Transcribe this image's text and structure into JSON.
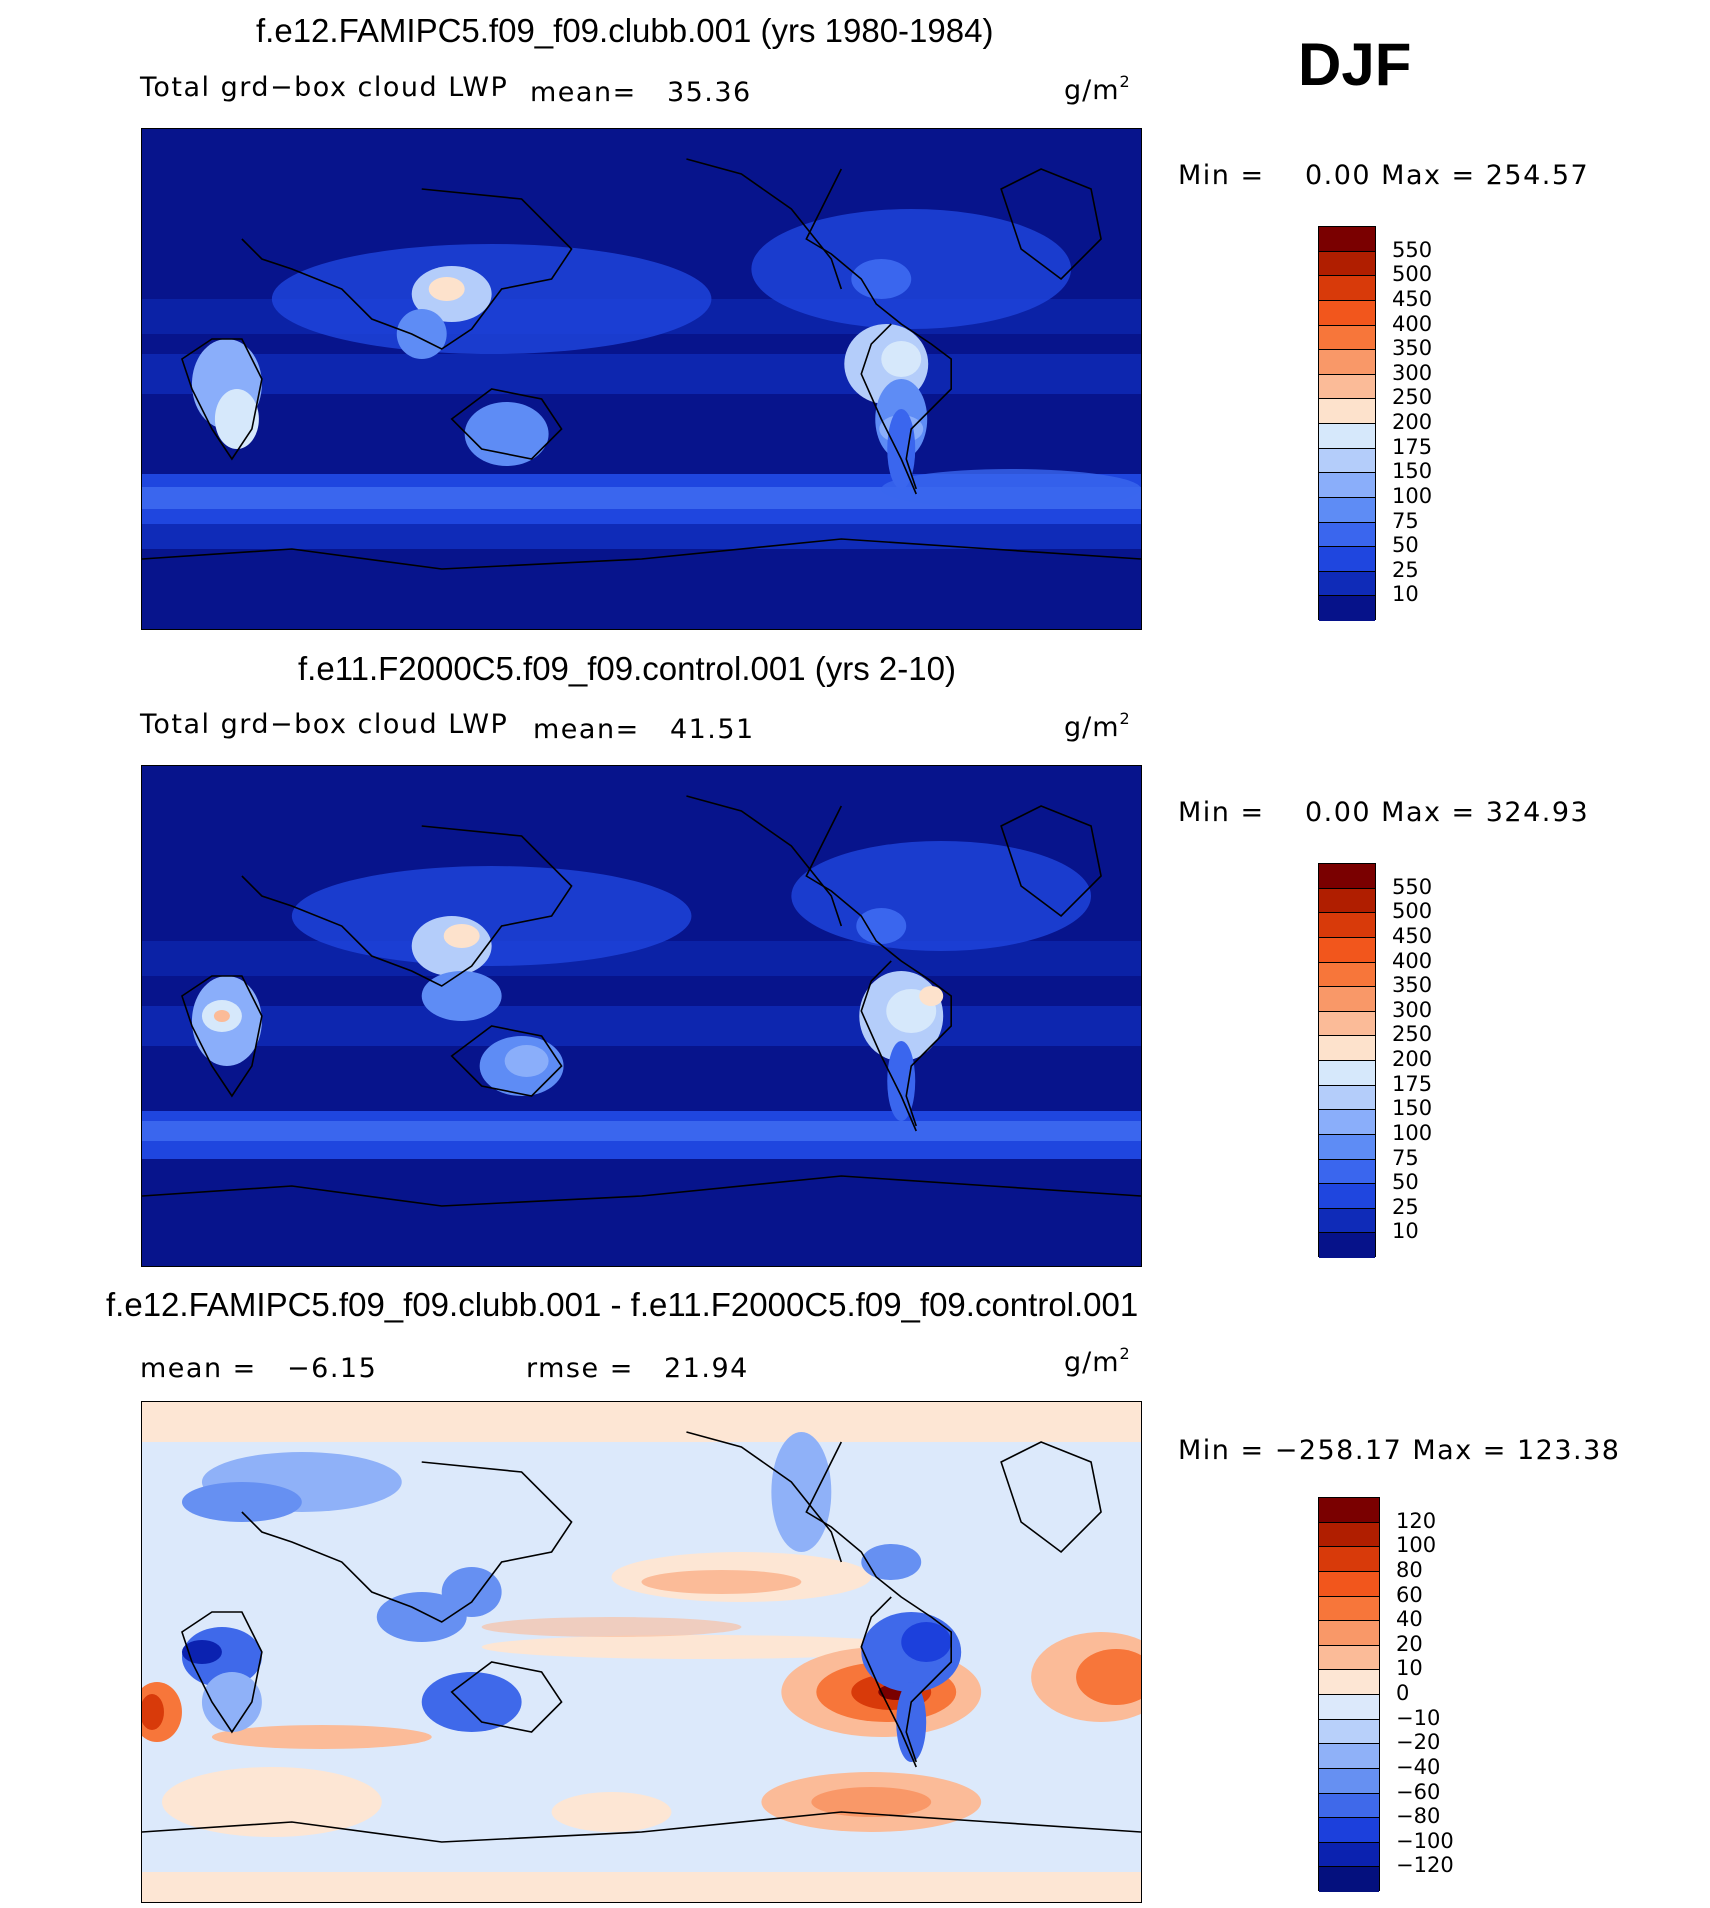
{
  "season": "DJF",
  "panels": [
    {
      "title": "f.e12.FAMIPC5.f09_f09.clubb.001 (yrs 1980-1984)",
      "variable": "Total grd−box cloud LWP",
      "mean_text": "mean=   35.36",
      "units": "g/m",
      "units_exp": "2",
      "minmax": "Min =    0.00 Max = 254.57",
      "colorbar": {
        "levels": [
          "550",
          "500",
          "450",
          "400",
          "350",
          "300",
          "250",
          "200",
          "175",
          "150",
          "100",
          "75",
          "50",
          "25",
          "10"
        ],
        "colors": [
          "#7a0000",
          "#b01e00",
          "#d83a0a",
          "#f2561c",
          "#f7763a",
          "#f99868",
          "#fbbb98",
          "#fde2cc",
          "#d6e8fb",
          "#b4cdfa",
          "#8aaefa",
          "#5e8cf5",
          "#3a66ee",
          "#1f46df",
          "#0f2bb8",
          "#06128a"
        ]
      },
      "map_base": "#07148c"
    },
    {
      "title": "f.e11.F2000C5.f09_f09.control.001 (yrs 2-10)",
      "variable": "Total grd−box cloud LWP",
      "mean_text": "mean=   41.51",
      "units": "g/m",
      "units_exp": "2",
      "minmax": "Min =    0.00 Max = 324.93",
      "colorbar": {
        "levels": [
          "550",
          "500",
          "450",
          "400",
          "350",
          "300",
          "250",
          "200",
          "175",
          "150",
          "100",
          "75",
          "50",
          "25",
          "10"
        ],
        "colors": [
          "#7a0000",
          "#b01e00",
          "#d83a0a",
          "#f2561c",
          "#f7763a",
          "#f99868",
          "#fbbb98",
          "#fde2cc",
          "#d6e8fb",
          "#b4cdfa",
          "#8aaefa",
          "#5e8cf5",
          "#3a66ee",
          "#1f46df",
          "#0f2bb8",
          "#06128a"
        ]
      },
      "map_base": "#07148c"
    },
    {
      "title": "f.e12.FAMIPC5.f09_f09.clubb.001 - f.e11.F2000C5.f09_f09.control.001",
      "mean_text": "mean =   −6.15",
      "rmse_text": "rmse =   21.94",
      "units": "g/m",
      "units_exp": "2",
      "minmax": "Min = −258.17 Max = 123.38",
      "colorbar": {
        "levels": [
          "120",
          "100",
          "80",
          "60",
          "40",
          "20",
          "10",
          "0",
          "−10",
          "−20",
          "−40",
          "−60",
          "−80",
          "−100",
          "−120"
        ],
        "colors": [
          "#7a0000",
          "#b01e00",
          "#d83a0a",
          "#f2561c",
          "#f7763a",
          "#f99868",
          "#fbbb98",
          "#fde6d4",
          "#dce9fb",
          "#b8d0fa",
          "#8fb1f8",
          "#6690f2",
          "#3f69ea",
          "#1c40dc",
          "#0b22b0",
          "#04107e"
        ]
      },
      "map_base": "#dce9fb"
    }
  ]
}
